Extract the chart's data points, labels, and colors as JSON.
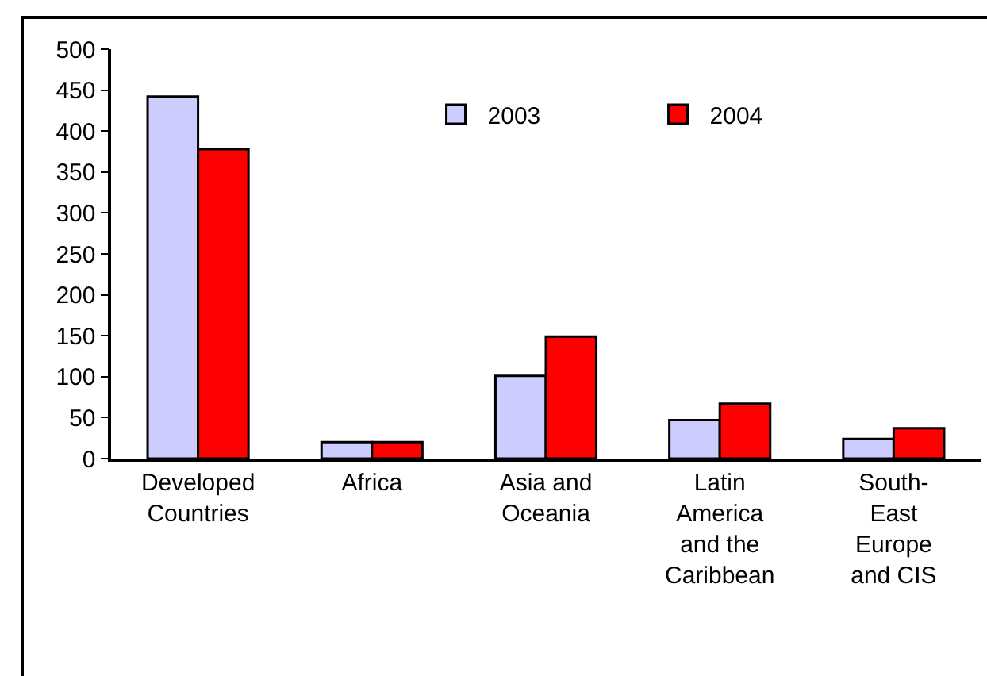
{
  "chart_data": {
    "type": "bar",
    "categories": [
      "Developed Countries",
      "Africa",
      "Asia and Oceania",
      "Latin America and the Caribbean",
      "South-East Europe and CIS"
    ],
    "series": [
      {
        "name": "2003",
        "color": "#ccccff",
        "values": [
          442,
          20,
          101,
          47,
          24
        ]
      },
      {
        "name": "2004",
        "color": "#ff0000",
        "values": [
          378,
          20,
          149,
          67,
          37
        ]
      }
    ],
    "ylim": [
      0,
      500
    ],
    "yticks": [
      0,
      50,
      100,
      150,
      200,
      250,
      300,
      350,
      400,
      450,
      500
    ],
    "grid": false,
    "legend": "top"
  }
}
